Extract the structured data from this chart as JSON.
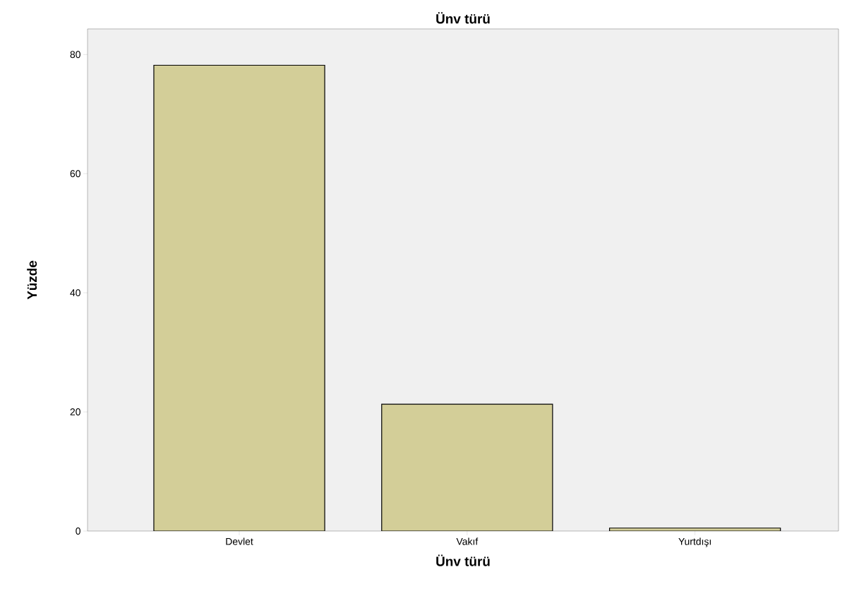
{
  "chart_data": {
    "type": "bar",
    "title": "Ünv türü",
    "xlabel": "Ünv türü",
    "ylabel": "Yüzde",
    "categories": [
      "Devlet",
      "Vakıf",
      "Yurtdışı"
    ],
    "values": [
      78.2,
      21.3,
      0.5
    ],
    "color": "#d3ce98",
    "ylim": [
      0,
      84.3
    ],
    "yticks": [
      0,
      20,
      40,
      60,
      80
    ],
    "grid": false
  }
}
